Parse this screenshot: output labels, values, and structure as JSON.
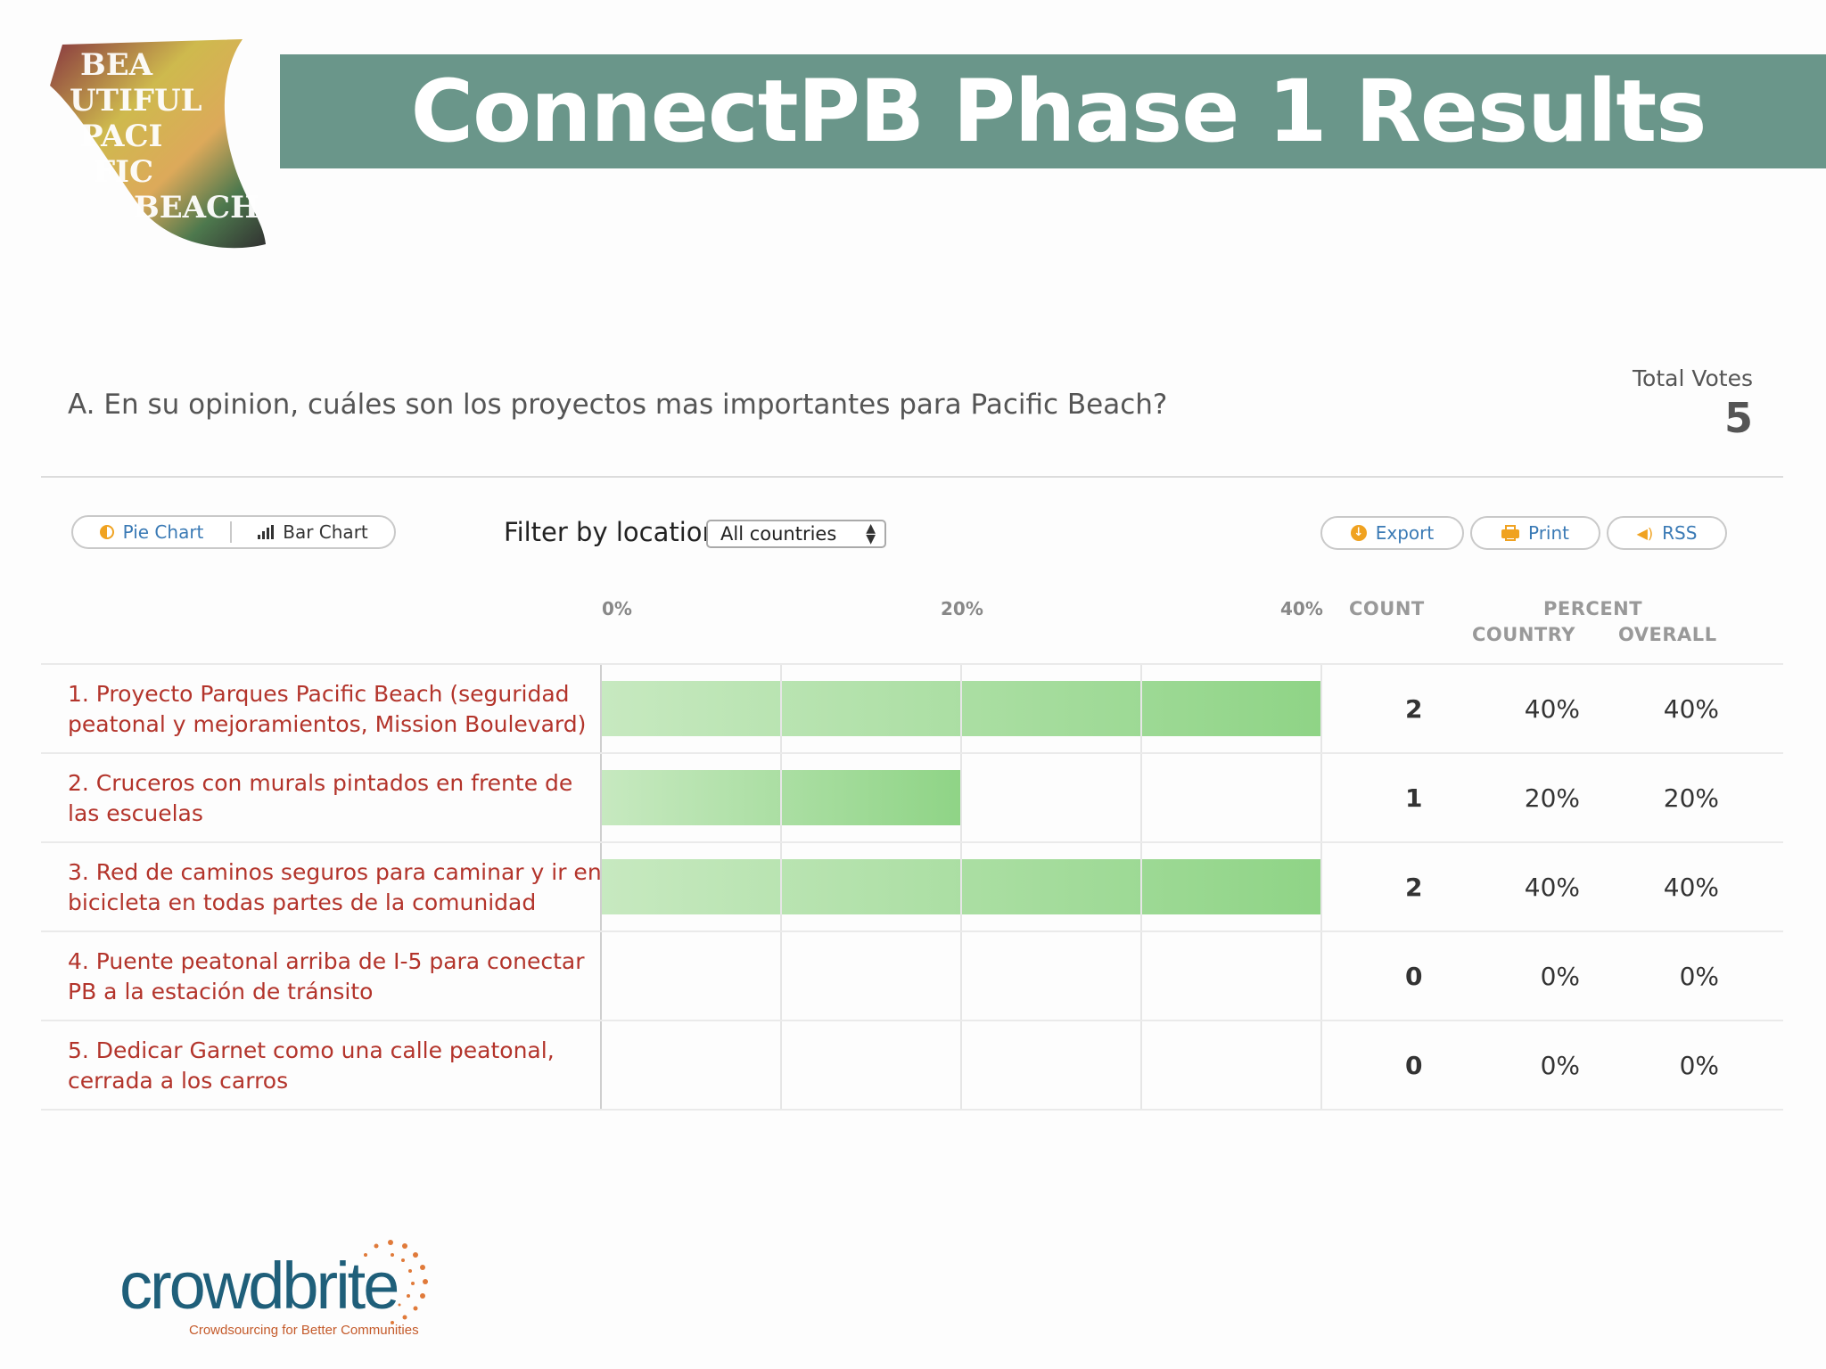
{
  "header": {
    "title": "ConnectPB Phase 1 Results",
    "logo_text": "Beautiful Pacific Beach",
    "bar_color": "#6a968a"
  },
  "question": {
    "text": "A. En su opinion, cuáles son los proyectos mas importantes para Pacific Beach?",
    "total_votes_label": "Total Votes",
    "total_votes": "5"
  },
  "toolbar": {
    "pie_chart_label": "Pie Chart",
    "bar_chart_label": "Bar Chart",
    "filter_label": "Filter by location",
    "location_selected": "All countries",
    "export_label": "Export",
    "print_label": "Print",
    "rss_label": "RSS"
  },
  "table": {
    "axis_ticks": [
      "0%",
      "20%",
      "40%"
    ],
    "count_header": "COUNT",
    "percent_header": "PERCENT",
    "country_header": "COUNTRY",
    "overall_header": "OVERALL",
    "rows": [
      {
        "label": "1. Proyecto Parques Pacific Beach (seguridad peatonal y mejoramientos, Mission Boulevard)",
        "count": "2",
        "country": "40%",
        "overall": "40%",
        "value": 40
      },
      {
        "label": "2. Cruceros con murals pintados en frente de las escuelas",
        "count": "1",
        "country": "20%",
        "overall": "20%",
        "value": 20
      },
      {
        "label": "3. Red de caminos seguros para caminar y ir en bicicleta en todas partes de la comunidad",
        "count": "2",
        "country": "40%",
        "overall": "40%",
        "value": 40
      },
      {
        "label": "4. Puente peatonal arriba de I-5 para conectar PB a la estación de tránsito",
        "count": "0",
        "country": "0%",
        "overall": "0%",
        "value": 0
      },
      {
        "label": "5. Dedicar Garnet como una calle peatonal, cerrada a los carros",
        "count": "0",
        "country": "0%",
        "overall": "0%",
        "value": 0
      }
    ]
  },
  "footer": {
    "brand": "crowdbrite",
    "tagline": "Crowdsourcing for Better Communities"
  },
  "chart_data": {
    "type": "bar",
    "categories": [
      "1. Proyecto Parques Pacific Beach (seguridad peatonal y mejoramientos, Mission Boulevard)",
      "2. Cruceros con murals pintados en frente de las escuelas",
      "3. Red de caminos seguros para caminar y ir en bicicleta en todas partes de la comunidad",
      "4. Puente peatonal arriba de I-5 para conectar PB a la estación de tránsito",
      "5. Dedicar Garnet como una calle peatonal, cerrada a los carros"
    ],
    "values": [
      40,
      20,
      40,
      0,
      0
    ],
    "xlim": [
      0,
      40
    ],
    "ticks": [
      "0%",
      "20%",
      "40%"
    ],
    "orientation": "horizontal",
    "grid": true
  }
}
